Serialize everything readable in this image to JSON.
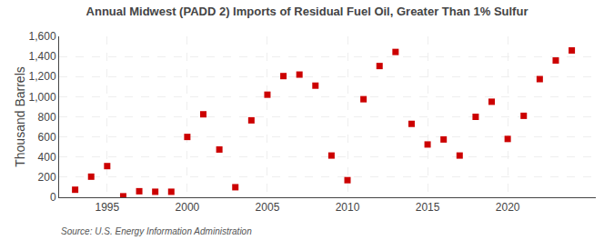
{
  "chart_data": {
    "type": "scatter",
    "title": "Annual Midwest (PADD 2) Imports of Residual Fuel Oil, Greater Than 1% Sulfur",
    "ylabel": "Thousand Barrels",
    "annotations": [
      "Source: U.S. Energy Information Administration"
    ],
    "x": [
      1993,
      1994,
      1995,
      1996,
      1997,
      1998,
      1999,
      2000,
      2001,
      2002,
      2003,
      2004,
      2005,
      2006,
      2007,
      2008,
      2009,
      2010,
      2011,
      2012,
      2013,
      2014,
      2015,
      2016,
      2017,
      2018,
      2019,
      2020,
      2021,
      2022,
      2023,
      2024
    ],
    "values": [
      75,
      205,
      310,
      10,
      60,
      55,
      55,
      600,
      825,
      475,
      100,
      765,
      1020,
      1205,
      1220,
      1110,
      415,
      170,
      975,
      1305,
      1445,
      730,
      525,
      575,
      415,
      800,
      950,
      580,
      810,
      1175,
      1360,
      1460
    ],
    "color": "#cc0000",
    "marker": "square",
    "xlim": [
      1992.0,
      2025.5
    ],
    "xticks": [
      1995,
      2000,
      2005,
      2010,
      2015,
      2020
    ],
    "ylim": [
      0,
      1600
    ],
    "yticks": [
      0,
      200,
      400,
      600,
      800,
      {
        "value": 1000,
        "label": "1,000"
      },
      {
        "value": 1200,
        "label": "1,200"
      },
      {
        "value": 1400,
        "label": "1,400"
      },
      {
        "value": 1600,
        "label": "1,600"
      }
    ],
    "grid": true
  }
}
